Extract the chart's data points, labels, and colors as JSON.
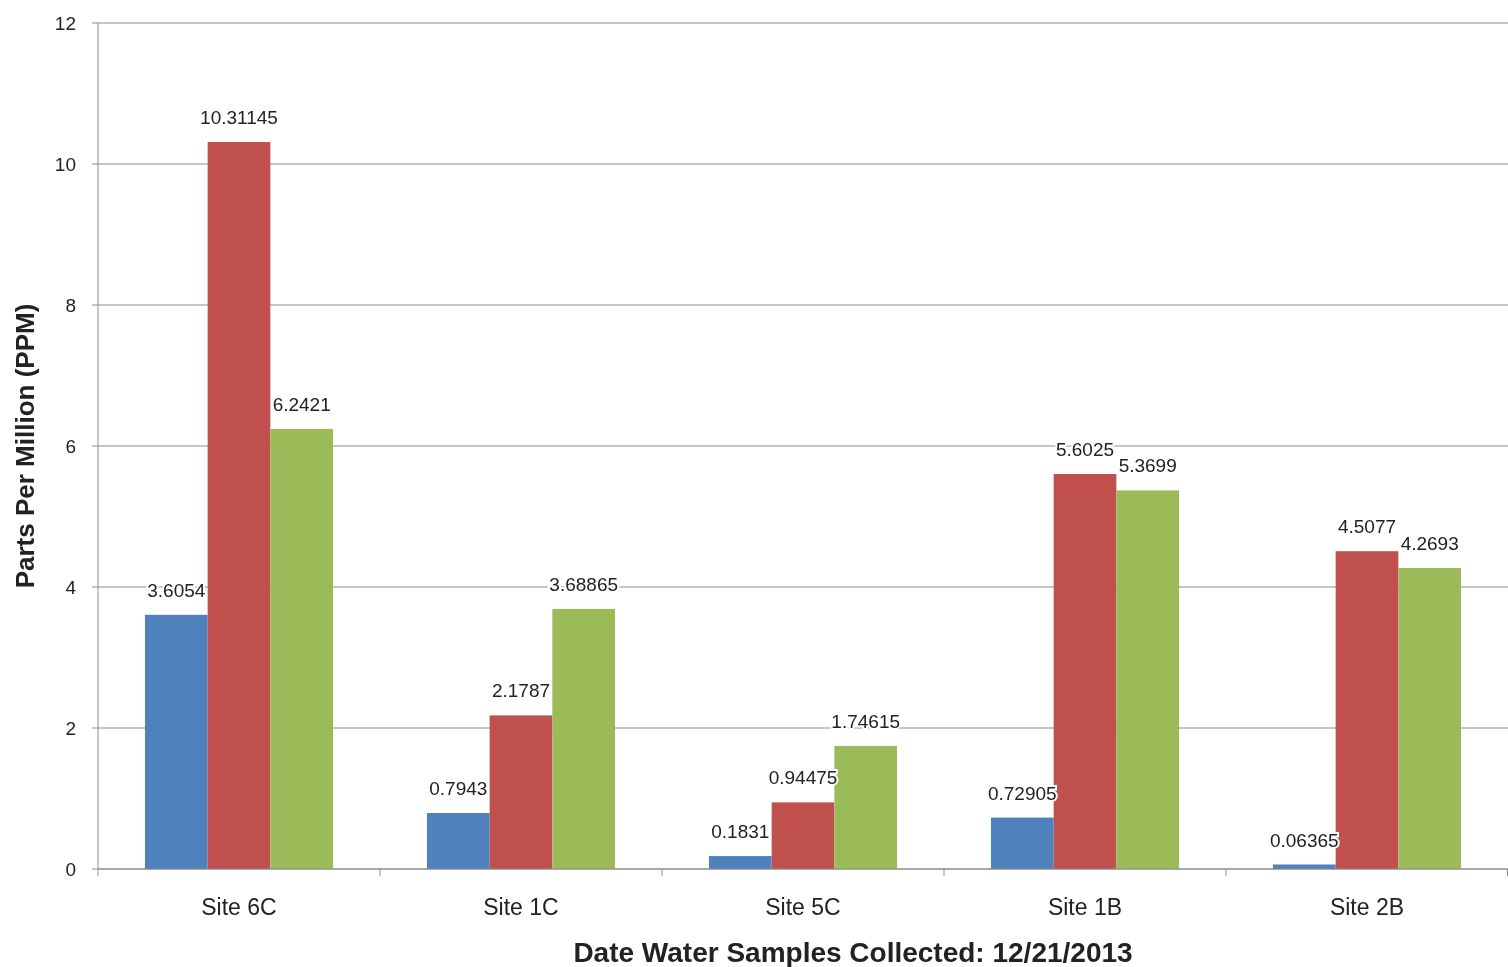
{
  "chart_data": {
    "type": "bar",
    "xlabel": "Date Water Samples Collected: 12/21/2013",
    "ylabel": "Parts Per Million (PPM)",
    "categories": [
      "Site 6C",
      "Site 1C",
      "Site 5C",
      "Site 1B",
      "Site 2B"
    ],
    "series": [
      {
        "color": "#4f81bd",
        "values": [
          3.6054,
          0.7943,
          0.1831,
          0.72905,
          0.06365
        ]
      },
      {
        "color": "#c0504d",
        "values": [
          10.31145,
          2.1787,
          0.94475,
          5.6025,
          4.5077
        ]
      },
      {
        "color": "#9bbb59",
        "values": [
          6.2421,
          3.68865,
          1.74615,
          5.3699,
          4.2693
        ]
      }
    ],
    "ylim": [
      0,
      12
    ],
    "yticks": [
      0,
      2,
      4,
      6,
      8,
      10,
      12
    ],
    "grid": "y",
    "data_labels": true
  }
}
